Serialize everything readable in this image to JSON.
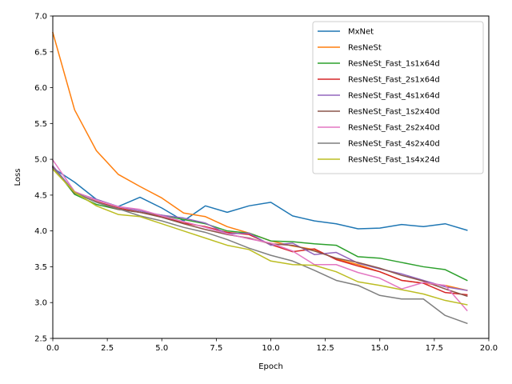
{
  "chart_data": {
    "type": "line",
    "title": "",
    "xlabel": "Epoch",
    "ylabel": "Loss",
    "xlim": [
      0,
      20
    ],
    "ylim": [
      2.5,
      7.0
    ],
    "xticks": [
      "0.0",
      "2.5",
      "5.0",
      "7.5",
      "10.0",
      "12.5",
      "15.0",
      "17.5",
      "20.0"
    ],
    "yticks": [
      "2.5",
      "3.0",
      "3.5",
      "4.0",
      "4.5",
      "5.0",
      "5.5",
      "6.0",
      "6.5",
      "7.0"
    ],
    "grid": false,
    "legend_position": "top-right",
    "x": [
      0,
      1,
      2,
      3,
      4,
      5,
      6,
      7,
      8,
      9,
      10,
      11,
      12,
      13,
      14,
      15,
      16,
      17,
      18,
      19
    ],
    "series": [
      {
        "name": "MxNet",
        "color": "#1f77b4",
        "values": [
          4.88,
          4.68,
          4.44,
          4.34,
          4.47,
          4.32,
          4.14,
          4.35,
          4.26,
          4.35,
          4.4,
          4.21,
          4.14,
          4.1,
          4.03,
          4.04,
          4.09,
          4.06,
          4.1,
          4.01
        ]
      },
      {
        "name": "ResNeSt",
        "color": "#ff7f0e",
        "values": [
          6.77,
          5.69,
          5.12,
          4.79,
          4.62,
          4.46,
          4.25,
          4.2,
          4.06,
          3.97,
          3.86,
          3.79,
          3.74,
          3.61,
          3.53,
          3.43,
          3.31,
          3.27,
          3.24,
          3.17
        ]
      },
      {
        "name": "ResNeSt_Fast_1s1x64d",
        "color": "#2ca02c",
        "values": [
          4.9,
          4.51,
          4.37,
          4.3,
          4.26,
          4.22,
          4.16,
          4.1,
          4.0,
          3.97,
          3.86,
          3.85,
          3.82,
          3.8,
          3.64,
          3.62,
          3.56,
          3.5,
          3.46,
          3.31
        ]
      },
      {
        "name": "ResNeSt_Fast_2s1x64d",
        "color": "#d62728",
        "values": [
          4.89,
          4.53,
          4.41,
          4.32,
          4.26,
          4.2,
          4.11,
          4.06,
          3.98,
          3.95,
          3.81,
          3.71,
          3.75,
          3.6,
          3.51,
          3.43,
          3.31,
          3.27,
          3.14,
          3.11
        ]
      },
      {
        "name": "ResNeSt_Fast_4s1x64d",
        "color": "#9467bd",
        "values": [
          4.91,
          4.54,
          4.44,
          4.34,
          4.28,
          4.22,
          4.18,
          4.11,
          3.96,
          3.97,
          3.8,
          3.83,
          3.67,
          3.7,
          3.55,
          3.47,
          3.4,
          3.31,
          3.22,
          3.17
        ]
      },
      {
        "name": "ResNeSt_Fast_1s2x40d",
        "color": "#8c564b",
        "values": [
          4.89,
          4.53,
          4.4,
          4.3,
          4.26,
          4.19,
          4.1,
          4.02,
          3.95,
          3.9,
          3.82,
          3.8,
          3.72,
          3.62,
          3.56,
          3.48,
          3.38,
          3.3,
          3.19,
          3.09
        ]
      },
      {
        "name": "ResNeSt_Fast_2s2x40d",
        "color": "#e377c2",
        "values": [
          4.99,
          4.55,
          4.43,
          4.34,
          4.3,
          4.21,
          4.13,
          4.05,
          3.96,
          3.89,
          3.83,
          3.72,
          3.53,
          3.53,
          3.42,
          3.34,
          3.19,
          3.28,
          3.24,
          2.89
        ]
      },
      {
        "name": "ResNeSt_Fast_4s2x40d",
        "color": "#7f7f7f",
        "values": [
          4.88,
          4.54,
          4.4,
          4.31,
          4.21,
          4.14,
          4.05,
          3.98,
          3.88,
          3.76,
          3.66,
          3.58,
          3.45,
          3.31,
          3.24,
          3.1,
          3.05,
          3.05,
          2.82,
          2.71
        ]
      },
      {
        "name": "ResNeSt_Fast_1s4x24d",
        "color": "#bcbd22",
        "values": [
          4.86,
          4.54,
          4.35,
          4.23,
          4.2,
          4.1,
          4.0,
          3.9,
          3.8,
          3.74,
          3.58,
          3.53,
          3.52,
          3.43,
          3.29,
          3.24,
          3.18,
          3.12,
          3.03,
          2.97
        ]
      }
    ]
  }
}
